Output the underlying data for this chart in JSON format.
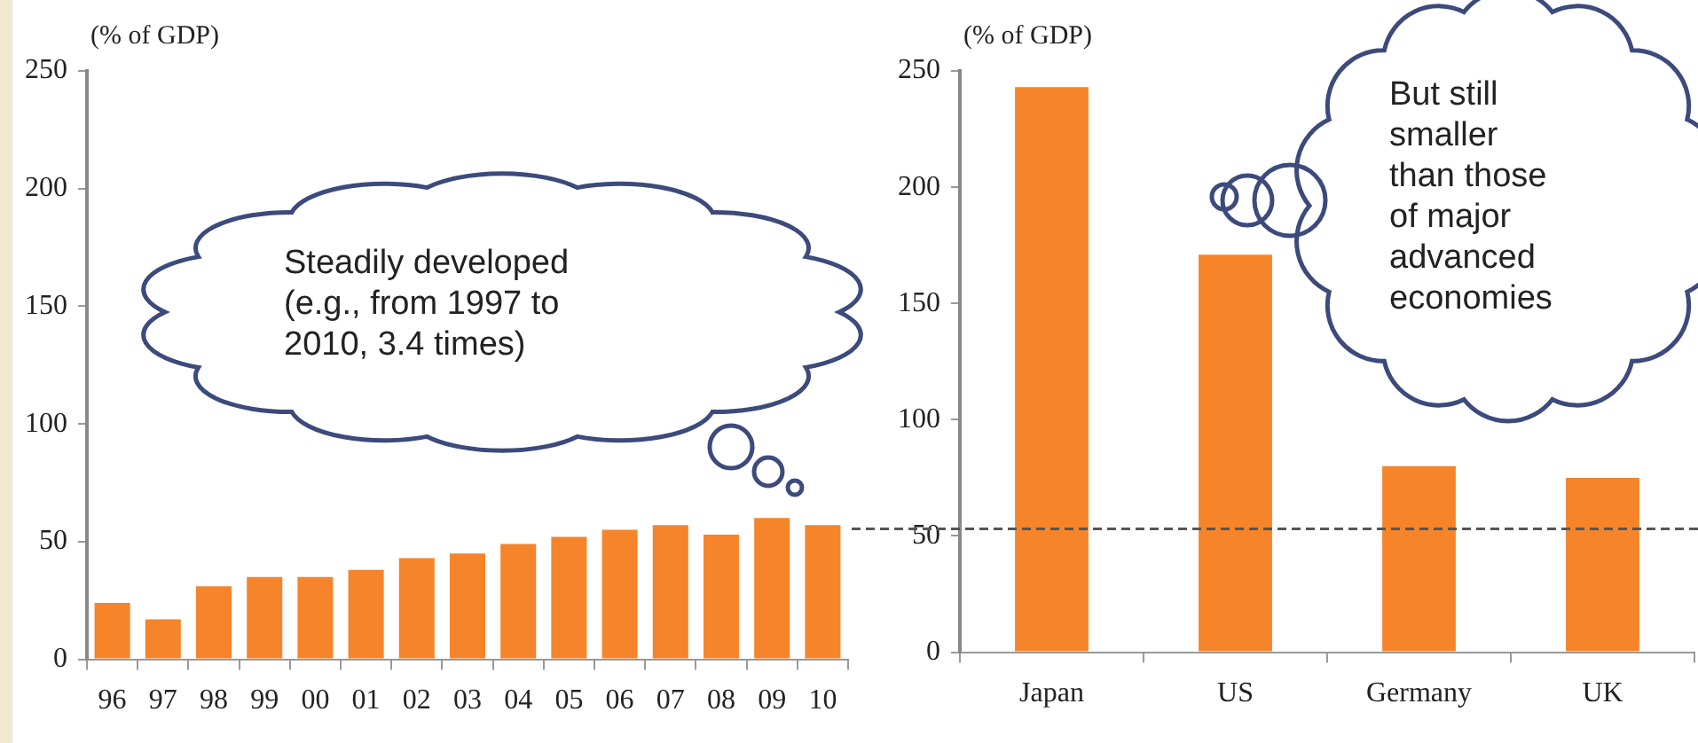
{
  "chart_data": [
    {
      "type": "bar",
      "ylabel": "(% of GDP)",
      "categories": [
        "96",
        "97",
        "98",
        "99",
        "00",
        "01",
        "02",
        "03",
        "04",
        "05",
        "06",
        "07",
        "08",
        "09",
        "10"
      ],
      "values": [
        24,
        17,
        31,
        35,
        35,
        38,
        43,
        45,
        49,
        52,
        55,
        57,
        53,
        60,
        57
      ],
      "color": "#f5842a",
      "ylim": [
        0,
        250
      ],
      "yticks": [
        0,
        50,
        100,
        150,
        200,
        250
      ],
      "grid": false,
      "legend": false,
      "annotations": [
        "Steadily developed\n(e.g., from 1997 to\n2010, 3.4 times)"
      ]
    },
    {
      "type": "bar",
      "ylabel": "(% of GDP)",
      "categories": [
        "Japan",
        "US",
        "Germany",
        "UK"
      ],
      "values": [
        243,
        171,
        80,
        75
      ],
      "color": "#f5842a",
      "ylim": [
        0,
        250
      ],
      "yticks": [
        0,
        50,
        100,
        150,
        200,
        250
      ],
      "grid": false,
      "legend": false,
      "ref_lines": [
        {
          "axis": "y",
          "value": 53,
          "line_style": "dashed",
          "color": "#555555"
        }
      ],
      "annotations": [
        "But still\nsmaller\nthan those\nof major\nadvanced\neconomies"
      ]
    }
  ]
}
